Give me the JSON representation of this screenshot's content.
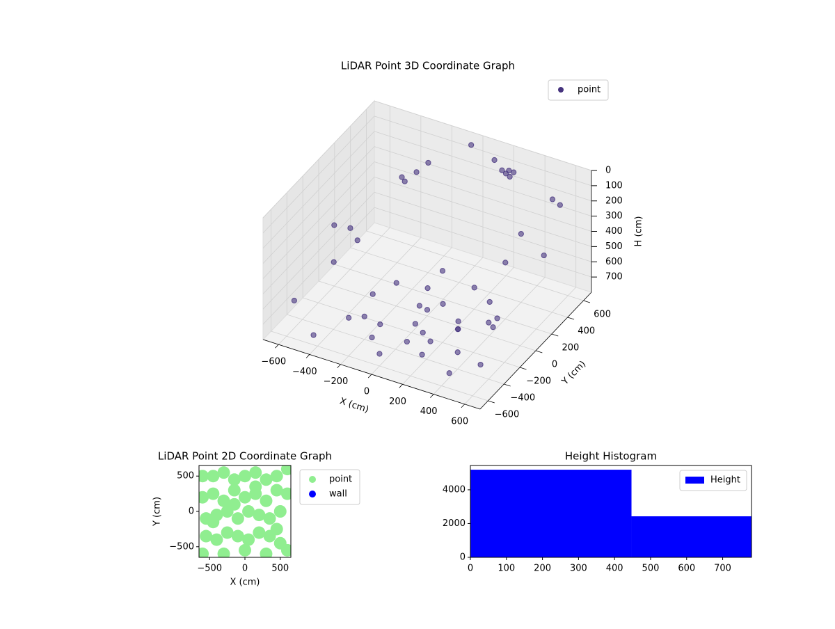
{
  "chart_data": [
    {
      "type": "scatter3d",
      "title": "LiDAR Point 3D Coordinate Graph",
      "xlabel": "X (cm)",
      "ylabel": "Y (cm)",
      "zlabel": "H (cm)",
      "xlim": [
        -700,
        700
      ],
      "ylim": [
        -700,
        700
      ],
      "zlim": [
        0,
        800
      ],
      "zinverted": true,
      "xticks": [
        {
          "value": -600,
          "label": "−600"
        },
        {
          "value": -400,
          "label": "−400"
        },
        {
          "value": -200,
          "label": "−200"
        },
        0,
        200,
        400,
        600
      ],
      "yticks": [
        {
          "value": -600,
          "label": "−600"
        },
        {
          "value": -400,
          "label": "−400"
        },
        {
          "value": -200,
          "label": "−200"
        },
        0,
        200,
        400,
        600
      ],
      "zticks": [
        0,
        100,
        200,
        300,
        400,
        500,
        600,
        700
      ],
      "legend": "upper right",
      "series": [
        {
          "name": "point",
          "color": "#46337e",
          "x": [
            -650,
            -500,
            -420,
            -300,
            -250,
            -150,
            -100,
            -50,
            0,
            50,
            100,
            150,
            200,
            250,
            300,
            350,
            400,
            450,
            -200,
            -100,
            0,
            100,
            200,
            300,
            -350,
            -300,
            -250,
            200,
            220,
            240,
            250,
            260,
            -550,
            -600,
            600,
            650,
            500,
            -400,
            300,
            100,
            -50,
            150,
            400,
            550,
            -450,
            0,
            350,
            -250,
            450,
            600
          ],
          "y": [
            300,
            -200,
            500,
            -100,
            100,
            -300,
            200,
            0,
            -150,
            100,
            -250,
            300,
            0,
            -100,
            200,
            -300,
            100,
            -50,
            -400,
            -500,
            -600,
            -450,
            -350,
            -200,
            400,
            450,
            500,
            550,
            560,
            570,
            540,
            580,
            -600,
            0,
            -500,
            200,
            600,
            -650,
            -650,
            650,
            650,
            -100,
            400,
            -300,
            0,
            0,
            300,
            -500,
            -600,
            500
          ],
          "z": [
            600,
            500,
            300,
            700,
            720,
            740,
            760,
            750,
            770,
            760,
            740,
            730,
            770,
            750,
            720,
            760,
            740,
            700,
            650,
            700,
            720,
            690,
            710,
            680,
            250,
            200,
            150,
            80,
            100,
            120,
            60,
            90,
            550,
            400,
            650,
            300,
            200,
            700,
            600,
            100,
            50,
            400,
            350,
            500,
            450,
            760,
            500,
            620,
            700,
            150
          ]
        }
      ]
    },
    {
      "type": "scatter",
      "title": "LiDAR Point 2D Coordinate Graph",
      "xlabel": "X (cm)",
      "ylabel": "Y (cm)",
      "xlim": [
        -650,
        650
      ],
      "ylim": [
        -650,
        650
      ],
      "xticks": [
        {
          "value": -500,
          "label": "−500"
        },
        0,
        500
      ],
      "yticks": [
        {
          "value": -500,
          "label": "−500"
        },
        0,
        500
      ],
      "legend": "outside right",
      "series": [
        {
          "name": "point",
          "color": "#90ee90",
          "x": [
            -600,
            -450,
            -300,
            -150,
            0,
            150,
            300,
            450,
            600,
            -600,
            -450,
            -300,
            -150,
            0,
            150,
            300,
            450,
            600,
            -550,
            -400,
            -250,
            -100,
            50,
            200,
            350,
            500,
            -550,
            -400,
            -250,
            -100,
            50,
            200,
            350,
            500,
            -600,
            -300,
            0,
            300,
            600,
            -450,
            -150,
            150,
            450
          ],
          "y": [
            500,
            500,
            550,
            450,
            500,
            550,
            450,
            500,
            600,
            200,
            250,
            150,
            300,
            200,
            250,
            150,
            300,
            250,
            -100,
            -50,
            0,
            -100,
            0,
            -50,
            -100,
            0,
            -350,
            -400,
            -300,
            -350,
            -400,
            -300,
            -350,
            -450,
            -600,
            -600,
            -550,
            -600,
            -550,
            -150,
            100,
            350,
            -250
          ]
        },
        {
          "name": "wall",
          "color": "#0000ff",
          "x": [],
          "y": []
        }
      ]
    },
    {
      "type": "histogram",
      "title": "Height Histogram",
      "xlim": [
        0,
        780
      ],
      "ylim": [
        0,
        5440
      ],
      "xticks": [
        0,
        100,
        200,
        300,
        400,
        500,
        600,
        700
      ],
      "yticks": [
        0,
        2000,
        4000
      ],
      "legend": "upper right",
      "series": [
        {
          "name": "Height",
          "color": "#0000ff",
          "bins": [
            0,
            447,
            780
          ],
          "counts": [
            5190,
            2430
          ]
        }
      ]
    }
  ]
}
